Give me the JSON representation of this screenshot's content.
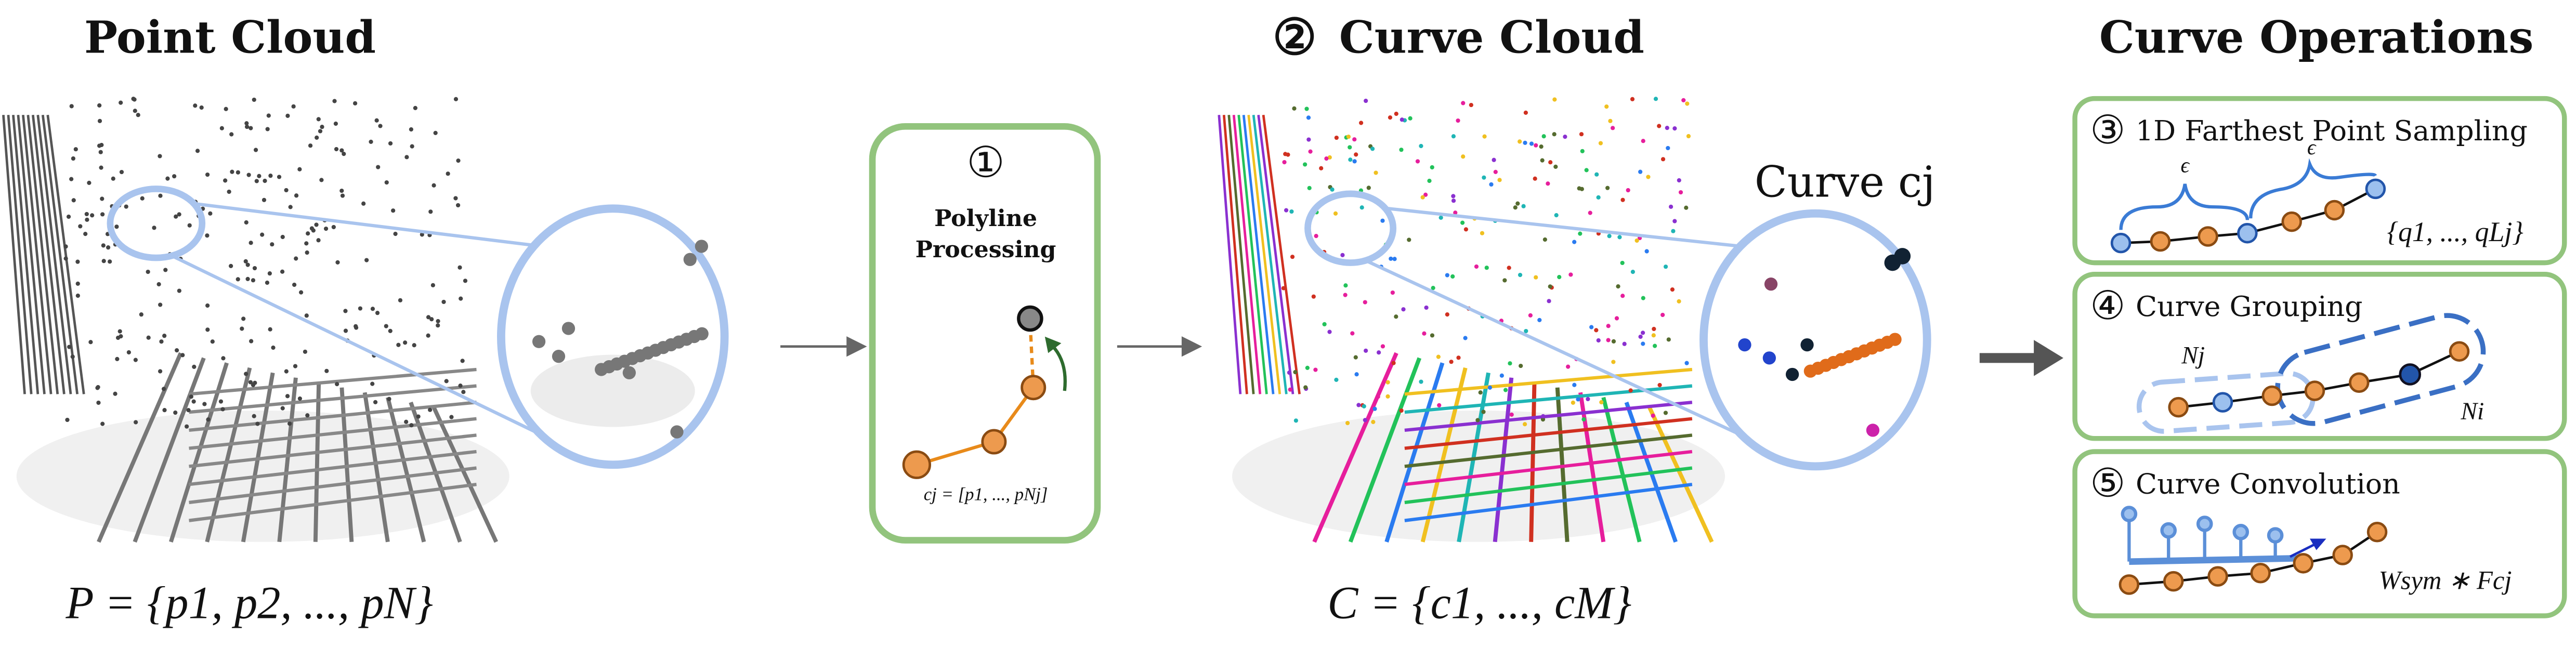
{
  "header": {
    "point_cloud": "Point Cloud",
    "curve_cloud_number": "②",
    "curve_cloud": "Curve Cloud",
    "curve_operations": "Curve Operations"
  },
  "point_cloud": {
    "formula": "P = {p1, p2, ..., pN}"
  },
  "polyline": {
    "number": "①",
    "title_line1": "Polyline",
    "title_line2": "Processing",
    "formula": "cj = [p1, ..., pNj]"
  },
  "curve_cloud": {
    "curve_label": "Curve cj",
    "formula": "C = {c1, ..., cM}"
  },
  "operations": [
    {
      "number": "③",
      "title": "1D Farthest Point Sampling",
      "epsilon": [
        "ϵ",
        "ϵ"
      ],
      "set": "{q1, ..., qLj}"
    },
    {
      "number": "④",
      "title": "Curve Grouping",
      "labels": [
        "Nj",
        "Ni"
      ]
    },
    {
      "number": "⑤",
      "title": "Curve Convolution",
      "formula": "Wsym ∗ Fcj"
    }
  ]
}
